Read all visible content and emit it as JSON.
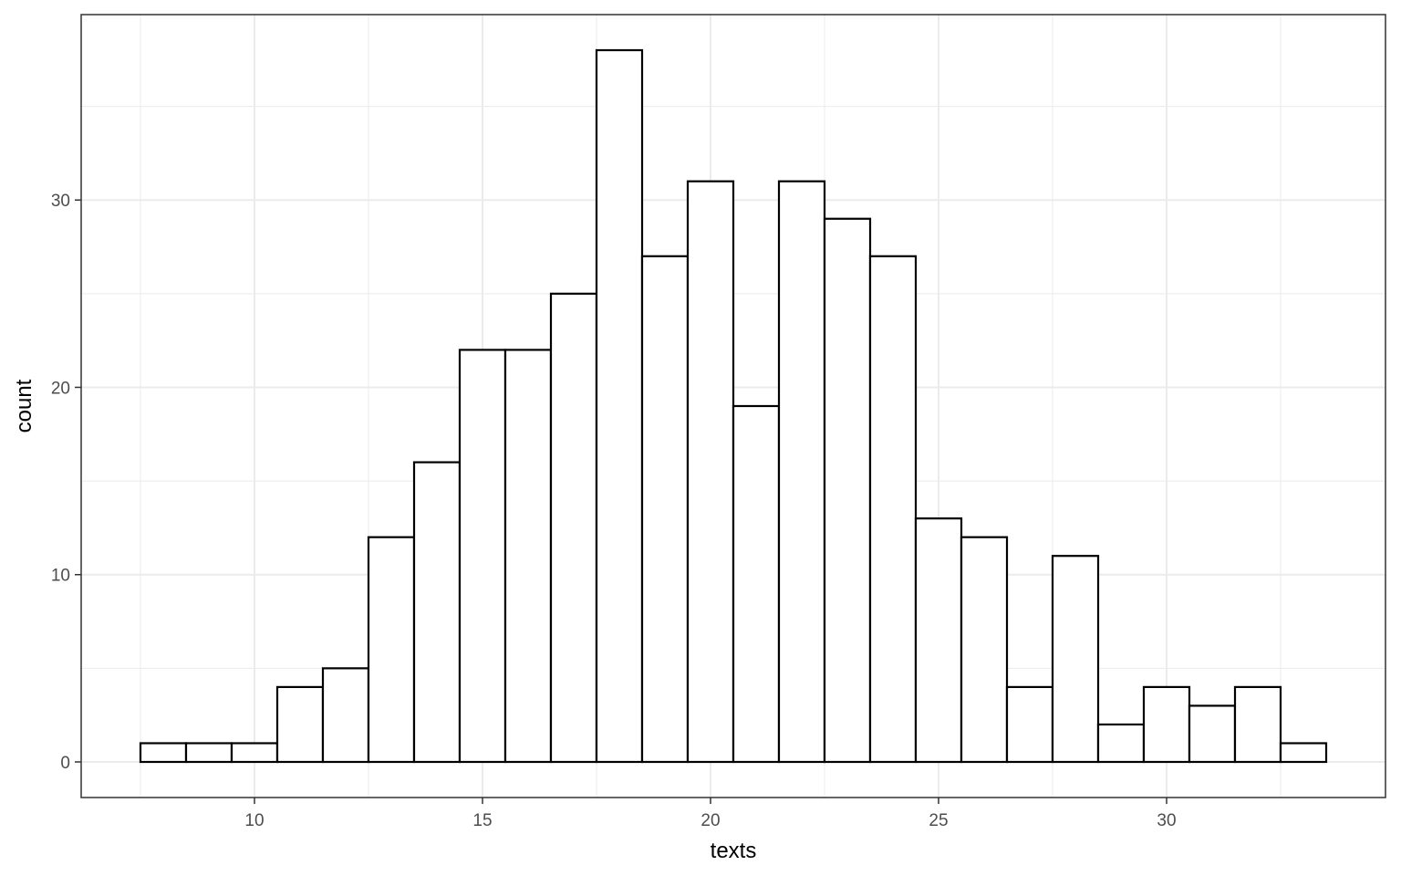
{
  "chart_data": {
    "type": "bar",
    "subtype": "histogram",
    "bin_width": 1,
    "bins": [
      {
        "x": 8,
        "count": 1
      },
      {
        "x": 9,
        "count": 1
      },
      {
        "x": 10,
        "count": 1
      },
      {
        "x": 11,
        "count": 4
      },
      {
        "x": 12,
        "count": 5
      },
      {
        "x": 13,
        "count": 12
      },
      {
        "x": 14,
        "count": 16
      },
      {
        "x": 15,
        "count": 22
      },
      {
        "x": 16,
        "count": 22
      },
      {
        "x": 17,
        "count": 25
      },
      {
        "x": 18,
        "count": 38
      },
      {
        "x": 19,
        "count": 27
      },
      {
        "x": 20,
        "count": 31
      },
      {
        "x": 21,
        "count": 19
      },
      {
        "x": 22,
        "count": 31
      },
      {
        "x": 23,
        "count": 29
      },
      {
        "x": 24,
        "count": 27
      },
      {
        "x": 25,
        "count": 13
      },
      {
        "x": 26,
        "count": 12
      },
      {
        "x": 27,
        "count": 4
      },
      {
        "x": 28,
        "count": 11
      },
      {
        "x": 29,
        "count": 2
      },
      {
        "x": 30,
        "count": 4
      },
      {
        "x": 31,
        "count": 3
      },
      {
        "x": 32,
        "count": 4
      },
      {
        "x": 33,
        "count": 1
      }
    ],
    "xlabel": "texts",
    "ylabel": "count",
    "xlim": [
      6.2,
      34.8
    ],
    "ylim": [
      -1.9,
      39.9
    ],
    "x_ticks": [
      10,
      15,
      20,
      25,
      30
    ],
    "y_ticks": [
      0,
      10,
      20,
      30
    ],
    "x_tick_labels": [
      "10",
      "15",
      "20",
      "25",
      "30"
    ],
    "y_tick_labels": [
      "0",
      "10",
      "20",
      "30"
    ],
    "grid": true,
    "bar_fill": "#ffffff",
    "bar_stroke": "#000000",
    "grid_color": "#ebebeb",
    "panel_border_color": "#333333",
    "tick_label_color": "#4d4d4d"
  }
}
